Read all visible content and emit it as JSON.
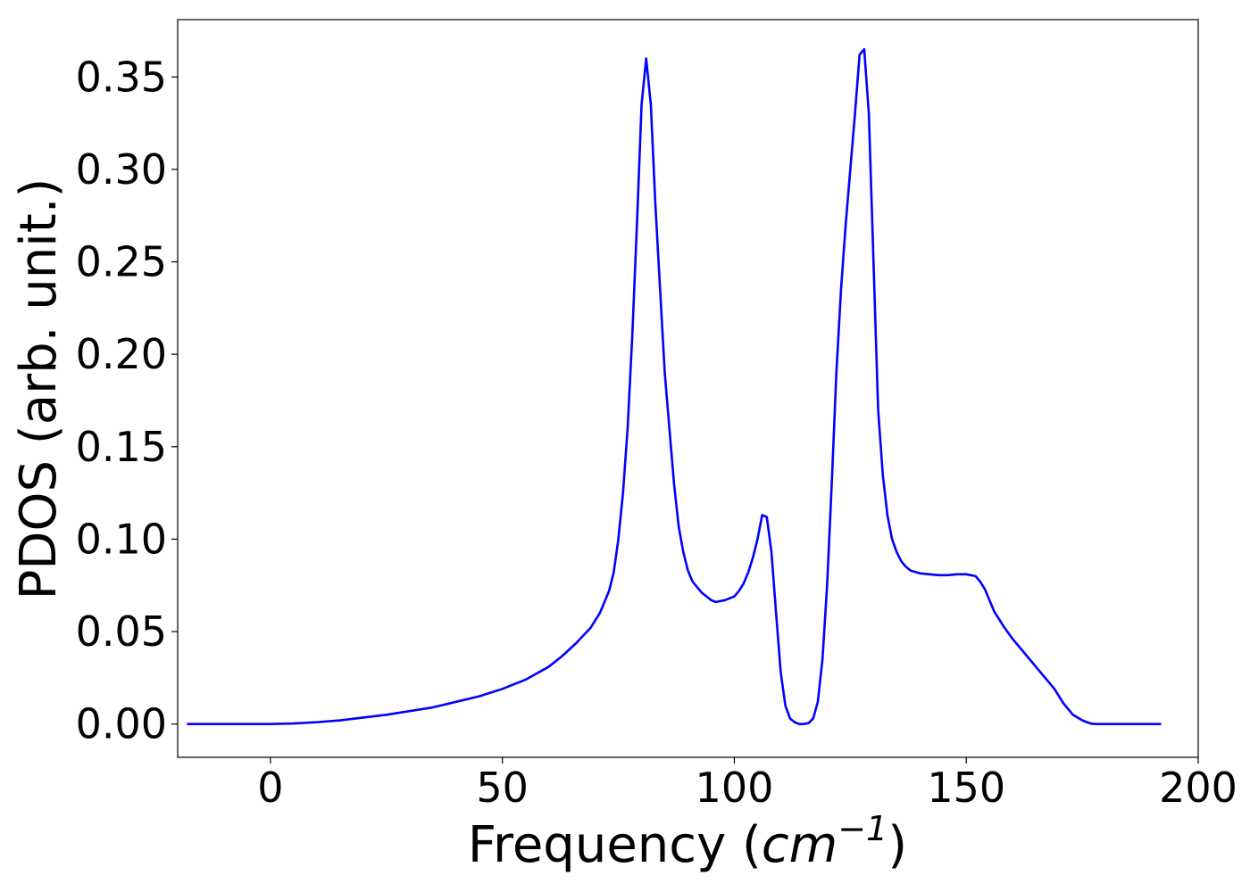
{
  "chart_data": {
    "type": "line",
    "title": "",
    "xlabel": "Frequency (cm⁻¹)",
    "xlabel_parts": {
      "pre": "Frequency (",
      "var": "cm",
      "sup": "−1",
      "post": ")"
    },
    "ylabel": "PDOS (arb. unit.)",
    "xlim": [
      -20,
      200
    ],
    "ylim": [
      -0.018,
      0.381
    ],
    "xticks": [
      0,
      50,
      100,
      150,
      200
    ],
    "yticks": [
      0.0,
      0.05,
      0.1,
      0.15,
      0.2,
      0.25,
      0.3,
      0.35
    ],
    "xtick_labels": [
      "0",
      "50",
      "100",
      "150",
      "200"
    ],
    "ytick_labels": [
      "0.00",
      "0.05",
      "0.10",
      "0.15",
      "0.20",
      "0.25",
      "0.30",
      "0.35"
    ],
    "grid": false,
    "legend": "none",
    "series": [
      {
        "color": "#0000ff",
        "x": [
          -18,
          -10,
          0,
          5,
          10,
          15,
          20,
          25,
          30,
          35,
          40,
          45,
          50,
          55,
          60,
          63,
          66,
          69,
          71,
          73,
          74,
          75,
          76,
          77,
          78,
          79,
          80,
          81,
          82,
          83,
          85,
          87,
          88,
          89,
          90,
          91,
          93,
          95,
          96,
          98,
          100,
          101,
          102,
          103,
          104,
          105,
          106,
          107,
          108,
          109,
          110,
          111,
          112,
          113,
          114,
          115,
          116,
          117,
          118,
          119,
          120,
          121,
          122,
          123,
          124,
          125,
          126,
          127,
          128,
          129,
          130,
          131,
          132,
          133,
          134,
          135,
          136,
          137,
          138,
          140,
          142,
          144,
          146,
          148,
          150,
          152,
          153,
          154,
          155,
          156,
          158,
          160,
          163,
          166,
          169,
          171,
          173,
          175,
          176,
          177,
          178,
          180,
          185,
          192
        ],
        "y": [
          0,
          0,
          0,
          0.0003,
          0.001,
          0.002,
          0.0035,
          0.005,
          0.007,
          0.009,
          0.012,
          0.015,
          0.019,
          0.024,
          0.031,
          0.037,
          0.044,
          0.052,
          0.06,
          0.072,
          0.082,
          0.1,
          0.125,
          0.16,
          0.21,
          0.27,
          0.335,
          0.36,
          0.335,
          0.28,
          0.19,
          0.13,
          0.107,
          0.093,
          0.083,
          0.077,
          0.071,
          0.067,
          0.066,
          0.067,
          0.069,
          0.072,
          0.076,
          0.082,
          0.09,
          0.1,
          0.113,
          0.112,
          0.093,
          0.06,
          0.028,
          0.01,
          0.003,
          0.001,
          0,
          0,
          0.0005,
          0.003,
          0.012,
          0.035,
          0.075,
          0.13,
          0.19,
          0.235,
          0.27,
          0.3,
          0.33,
          0.362,
          0.365,
          0.33,
          0.25,
          0.17,
          0.135,
          0.113,
          0.1,
          0.093,
          0.088,
          0.085,
          0.083,
          0.0815,
          0.081,
          0.0805,
          0.0805,
          0.081,
          0.081,
          0.08,
          0.077,
          0.073,
          0.067,
          0.061,
          0.053,
          0.046,
          0.037,
          0.028,
          0.019,
          0.011,
          0.005,
          0.002,
          0.001,
          0.0002,
          0,
          0,
          0,
          0
        ]
      }
    ]
  }
}
